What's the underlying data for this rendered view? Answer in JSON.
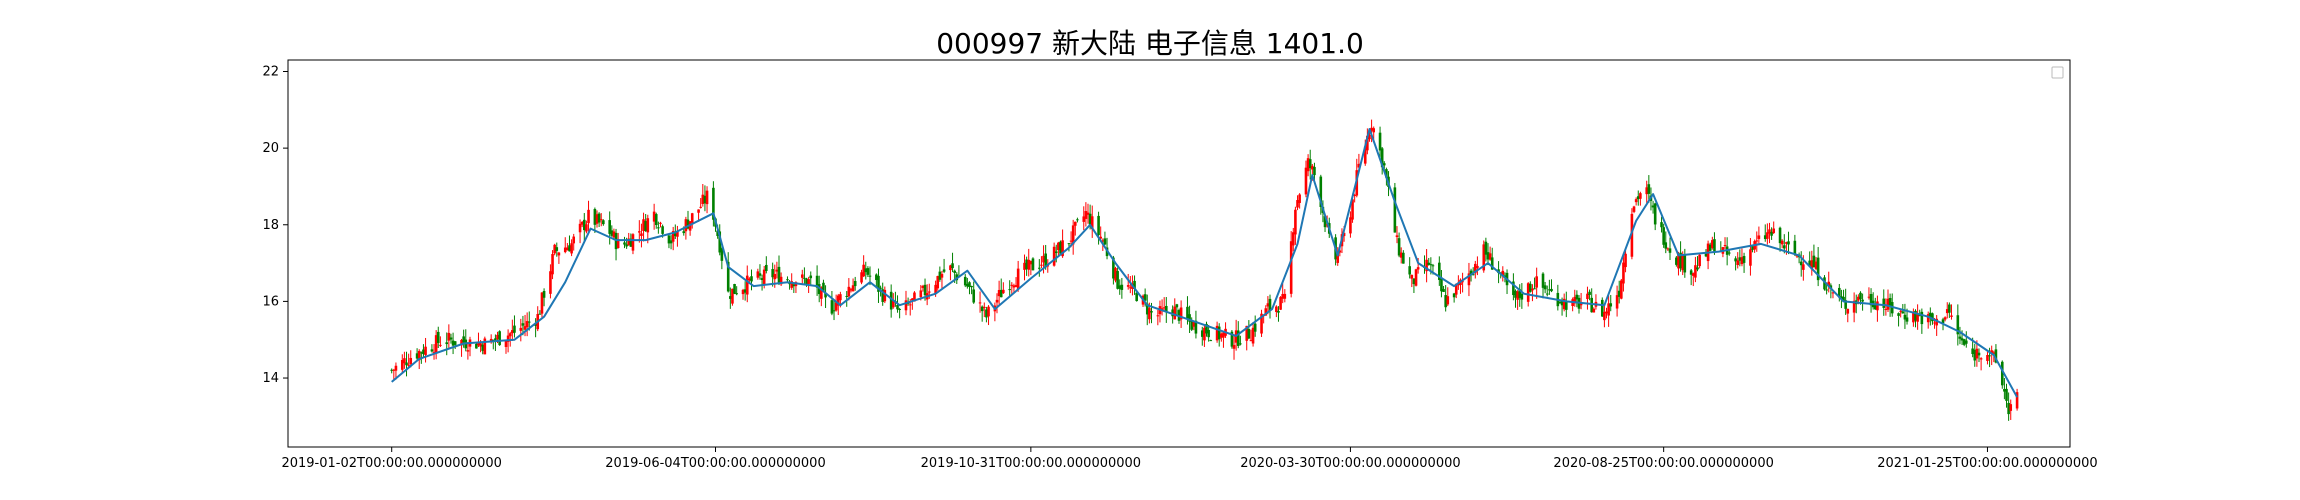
{
  "chart_data": {
    "type": "candlestick",
    "title": "000997 新大陆 电子信息 1401.0",
    "xlabel": "",
    "ylabel": "",
    "ylim": [
      12.2,
      22.3
    ],
    "xlim": [
      "2018-11-14",
      "2021-03-05"
    ],
    "y_ticks": [
      14,
      16,
      18,
      20,
      22
    ],
    "x_ticks": [
      {
        "date": "2019-01-02",
        "label": "2019-01-02T00:00:00.000000000"
      },
      {
        "date": "2019-06-04",
        "label": "2019-06-04T00:00:00.000000000"
      },
      {
        "date": "2019-10-31",
        "label": "2019-10-31T00:00:00.000000000"
      },
      {
        "date": "2020-03-30",
        "label": "2020-03-30T00:00:00.000000000"
      },
      {
        "date": "2020-08-25",
        "label": "2020-08-25T00:00:00.000000000"
      },
      {
        "date": "2021-01-25",
        "label": "2021-01-25T00:00:00.000000000"
      }
    ],
    "grid": false,
    "legend": {
      "position": "upper right",
      "entries": []
    },
    "colors": {
      "up": "#ff0000",
      "down": "#008000",
      "ma_line": "#1f77b4"
    },
    "series": [
      {
        "kind": "close",
        "points": [
          [
            "2019-01-02",
            14.2
          ],
          [
            "2019-01-12",
            14.6
          ],
          [
            "2019-01-26",
            15.0
          ],
          [
            "2019-02-15",
            14.9
          ],
          [
            "2019-03-01",
            15.2
          ],
          [
            "2019-03-12",
            15.6
          ],
          [
            "2019-03-20",
            17.3
          ],
          [
            "2019-03-28",
            17.5
          ],
          [
            "2019-04-05",
            18.2
          ],
          [
            "2019-04-14",
            17.9
          ],
          [
            "2019-04-20",
            17.4
          ],
          [
            "2019-04-28",
            17.8
          ],
          [
            "2019-05-06",
            18.3
          ],
          [
            "2019-05-14",
            17.6
          ],
          [
            "2019-05-24",
            18.2
          ],
          [
            "2019-06-01",
            18.8
          ],
          [
            "2019-06-06",
            17.5
          ],
          [
            "2019-06-10",
            16.2
          ],
          [
            "2019-06-20",
            16.5
          ],
          [
            "2019-07-01",
            16.7
          ],
          [
            "2019-07-10",
            16.6
          ],
          [
            "2019-07-20",
            16.5
          ],
          [
            "2019-07-28",
            15.8
          ],
          [
            "2019-08-05",
            16.3
          ],
          [
            "2019-08-14",
            16.8
          ],
          [
            "2019-08-22",
            16.2
          ],
          [
            "2019-08-30",
            15.7
          ],
          [
            "2019-09-10",
            16.2
          ],
          [
            "2019-09-22",
            16.9
          ],
          [
            "2019-10-01",
            16.4
          ],
          [
            "2019-10-10",
            15.6
          ],
          [
            "2019-10-20",
            16.5
          ],
          [
            "2019-10-31",
            16.9
          ],
          [
            "2019-11-08",
            17.1
          ],
          [
            "2019-11-18",
            17.6
          ],
          [
            "2019-11-26",
            18.3
          ],
          [
            "2019-12-04",
            17.6
          ],
          [
            "2019-12-11",
            16.5
          ],
          [
            "2019-12-20",
            16.2
          ],
          [
            "2019-12-28",
            15.6
          ],
          [
            "2020-01-06",
            15.8
          ],
          [
            "2020-01-15",
            15.4
          ],
          [
            "2020-01-24",
            15.2
          ],
          [
            "2020-02-04",
            15.0
          ],
          [
            "2020-02-12",
            15.2
          ],
          [
            "2020-02-20",
            15.8
          ],
          [
            "2020-02-28",
            16.0
          ],
          [
            "2020-03-04",
            18.5
          ],
          [
            "2020-03-10",
            19.6
          ],
          [
            "2020-03-14",
            19.2
          ],
          [
            "2020-03-22",
            17.0
          ],
          [
            "2020-03-28",
            17.8
          ],
          [
            "2020-04-03",
            19.5
          ],
          [
            "2020-04-09",
            20.7
          ],
          [
            "2020-04-15",
            19.5
          ],
          [
            "2020-04-21",
            17.5
          ],
          [
            "2020-04-28",
            16.5
          ],
          [
            "2020-05-06",
            17.0
          ],
          [
            "2020-05-14",
            16.0
          ],
          [
            "2020-05-22",
            16.5
          ],
          [
            "2020-06-01",
            17.3
          ],
          [
            "2020-06-08",
            16.8
          ],
          [
            "2020-06-15",
            16.0
          ],
          [
            "2020-06-25",
            16.5
          ],
          [
            "2020-07-03",
            16.2
          ],
          [
            "2020-07-12",
            15.9
          ],
          [
            "2020-07-20",
            16.0
          ],
          [
            "2020-07-28",
            15.7
          ],
          [
            "2020-08-04",
            16.3
          ],
          [
            "2020-08-10",
            18.5
          ],
          [
            "2020-08-16",
            19.0
          ],
          [
            "2020-08-22",
            18.0
          ],
          [
            "2020-08-30",
            17.2
          ],
          [
            "2020-09-08",
            16.8
          ],
          [
            "2020-09-18",
            17.5
          ],
          [
            "2020-09-28",
            17.0
          ],
          [
            "2020-10-06",
            17.4
          ],
          [
            "2020-10-14",
            17.8
          ],
          [
            "2020-10-24",
            17.3
          ],
          [
            "2020-11-03",
            17.0
          ],
          [
            "2020-11-12",
            16.3
          ],
          [
            "2020-11-18",
            15.9
          ],
          [
            "2020-11-26",
            16.1
          ],
          [
            "2020-12-04",
            16.0
          ],
          [
            "2020-12-14",
            15.7
          ],
          [
            "2020-12-24",
            15.6
          ],
          [
            "2021-01-02",
            15.4
          ],
          [
            "2021-01-06",
            15.8
          ],
          [
            "2021-01-12",
            15.0
          ],
          [
            "2021-01-18",
            14.6
          ],
          [
            "2021-01-24",
            14.8
          ],
          [
            "2021-01-30",
            14.3
          ],
          [
            "2021-02-04",
            13.2
          ],
          [
            "2021-02-08",
            13.5
          ]
        ]
      },
      {
        "kind": "moving_average",
        "points": [
          [
            "2019-01-02",
            13.9
          ],
          [
            "2019-01-15",
            14.5
          ],
          [
            "2019-02-05",
            14.9
          ],
          [
            "2019-03-01",
            15.0
          ],
          [
            "2019-03-15",
            15.6
          ],
          [
            "2019-03-25",
            16.5
          ],
          [
            "2019-04-06",
            17.9
          ],
          [
            "2019-04-18",
            17.6
          ],
          [
            "2019-05-02",
            17.6
          ],
          [
            "2019-05-16",
            17.8
          ],
          [
            "2019-06-03",
            18.3
          ],
          [
            "2019-06-10",
            16.9
          ],
          [
            "2019-06-22",
            16.4
          ],
          [
            "2019-07-08",
            16.5
          ],
          [
            "2019-07-22",
            16.4
          ],
          [
            "2019-08-02",
            15.9
          ],
          [
            "2019-08-16",
            16.5
          ],
          [
            "2019-08-30",
            15.9
          ],
          [
            "2019-09-16",
            16.2
          ],
          [
            "2019-10-01",
            16.8
          ],
          [
            "2019-10-14",
            15.8
          ],
          [
            "2019-10-31",
            16.6
          ],
          [
            "2019-11-18",
            17.4
          ],
          [
            "2019-11-28",
            18.0
          ],
          [
            "2019-12-10",
            17.0
          ],
          [
            "2019-12-25",
            15.9
          ],
          [
            "2020-01-15",
            15.5
          ],
          [
            "2020-02-05",
            15.1
          ],
          [
            "2020-02-22",
            15.8
          ],
          [
            "2020-03-05",
            17.5
          ],
          [
            "2020-03-12",
            19.3
          ],
          [
            "2020-03-24",
            17.2
          ],
          [
            "2020-04-08",
            20.5
          ],
          [
            "2020-04-20",
            18.6
          ],
          [
            "2020-05-01",
            17.0
          ],
          [
            "2020-05-18",
            16.4
          ],
          [
            "2020-06-03",
            17.0
          ],
          [
            "2020-06-20",
            16.2
          ],
          [
            "2020-07-10",
            16.0
          ],
          [
            "2020-07-28",
            15.9
          ],
          [
            "2020-08-12",
            18.1
          ],
          [
            "2020-08-20",
            18.8
          ],
          [
            "2020-09-01",
            17.2
          ],
          [
            "2020-09-20",
            17.3
          ],
          [
            "2020-10-10",
            17.5
          ],
          [
            "2020-10-28",
            17.2
          ],
          [
            "2020-11-18",
            16.0
          ],
          [
            "2020-12-08",
            15.9
          ],
          [
            "2020-12-28",
            15.6
          ],
          [
            "2021-01-12",
            15.2
          ],
          [
            "2021-01-28",
            14.6
          ],
          [
            "2021-02-08",
            13.5
          ]
        ]
      }
    ]
  }
}
